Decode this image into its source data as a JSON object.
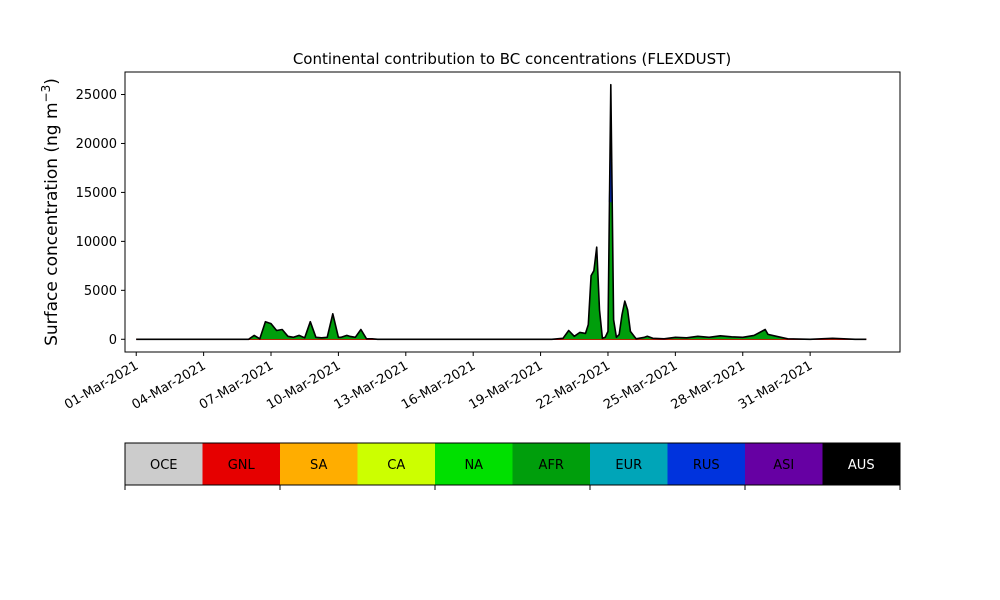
{
  "chart_data": {
    "type": "area",
    "title": "Continental contribution to BC concentrations (FLEXDUST)",
    "xlabel": "",
    "ylabel": "Surface concentration (ng m",
    "ylabel_unit_exponent": "−3",
    "ylabel_close": ")",
    "ylim": [
      -1300,
      27300
    ],
    "xlim": [
      "2021-02-28T12:00",
      "2021-04-04T00:00"
    ],
    "y_ticks": [
      0,
      5000,
      10000,
      15000,
      20000,
      25000
    ],
    "y_tick_labels": [
      "0",
      "5000",
      "10000",
      "15000",
      "20000",
      "25000"
    ],
    "x_ticks": [
      "2021-03-01",
      "2021-03-04",
      "2021-03-07",
      "2021-03-10",
      "2021-03-13",
      "2021-03-16",
      "2021-03-19",
      "2021-03-22",
      "2021-03-25",
      "2021-03-28",
      "2021-03-31"
    ],
    "x_tick_labels": [
      "01-Mar-2021",
      "04-Mar-2021",
      "07-Mar-2021",
      "10-Mar-2021",
      "13-Mar-2021",
      "16-Mar-2021",
      "19-Mar-2021",
      "22-Mar-2021",
      "25-Mar-2021",
      "28-Mar-2021",
      "31-Mar-2021"
    ],
    "grid": false,
    "legend": {
      "placement": "bottom",
      "entries": [
        {
          "label": "OCE",
          "color": "#cccccc",
          "text_color": "#000000"
        },
        {
          "label": "GNL",
          "color": "#e60000",
          "text_color": "#000000"
        },
        {
          "label": "SA",
          "color": "#ffad00",
          "text_color": "#000000"
        },
        {
          "label": "CA",
          "color": "#ccff00",
          "text_color": "#000000"
        },
        {
          "label": "NA",
          "color": "#00e000",
          "text_color": "#000000"
        },
        {
          "label": "AFR",
          "color": "#009e0c",
          "text_color": "#000000"
        },
        {
          "label": "EUR",
          "color": "#00a5b8",
          "text_color": "#000000"
        },
        {
          "label": "RUS",
          "color": "#0033dd",
          "text_color": "#000000"
        },
        {
          "label": "ASI",
          "color": "#6600a3",
          "text_color": "#000000"
        },
        {
          "label": "AUS",
          "color": "#000000",
          "text_color": "#ffffff"
        }
      ]
    },
    "series_fill_color": "#009e0c",
    "total_line_color": "#000000",
    "dominant_series": "AFR",
    "x": [
      "2021-03-01T00:00",
      "2021-03-02T00:00",
      "2021-03-03T00:00",
      "2021-03-04T00:00",
      "2021-03-05T00:00",
      "2021-03-06T00:00",
      "2021-03-06T06:00",
      "2021-03-06T12:00",
      "2021-03-06T18:00",
      "2021-03-07T00:00",
      "2021-03-07T06:00",
      "2021-03-07T12:00",
      "2021-03-07T18:00",
      "2021-03-08T00:00",
      "2021-03-08T06:00",
      "2021-03-08T12:00",
      "2021-03-08T18:00",
      "2021-03-09T00:00",
      "2021-03-09T06:00",
      "2021-03-09T12:00",
      "2021-03-09T18:00",
      "2021-03-10T00:00",
      "2021-03-10T03:00",
      "2021-03-10T09:00",
      "2021-03-10T12:00",
      "2021-03-10T18:00",
      "2021-03-11T00:00",
      "2021-03-11T06:00",
      "2021-03-11T12:00",
      "2021-03-11T18:00",
      "2021-03-12T00:00",
      "2021-03-12T03:00",
      "2021-03-12T09:00",
      "2021-03-12T12:00",
      "2021-03-13T00:00",
      "2021-03-14T00:00",
      "2021-03-15T00:00",
      "2021-03-16T00:00",
      "2021-03-17T00:00",
      "2021-03-18T00:00",
      "2021-03-19T00:00",
      "2021-03-19T12:00",
      "2021-03-20T00:00",
      "2021-03-20T06:00",
      "2021-03-20T12:00",
      "2021-03-20T18:00",
      "2021-03-21T00:00",
      "2021-03-21T03:00",
      "2021-03-21T06:00",
      "2021-03-21T09:00",
      "2021-03-21T12:00",
      "2021-03-21T15:00",
      "2021-03-21T18:00",
      "2021-03-21T21:00",
      "2021-03-22T00:00",
      "2021-03-22T03:00",
      "2021-03-22T06:00",
      "2021-03-22T09:00",
      "2021-03-22T12:00",
      "2021-03-22T15:00",
      "2021-03-22T18:00",
      "2021-03-22T21:00",
      "2021-03-23T00:00",
      "2021-03-23T06:00",
      "2021-03-23T09:00",
      "2021-03-23T12:00",
      "2021-03-23T15:00",
      "2021-03-23T18:00",
      "2021-03-24T00:00",
      "2021-03-24T12:00",
      "2021-03-25T00:00",
      "2021-03-25T12:00",
      "2021-03-26T00:00",
      "2021-03-26T12:00",
      "2021-03-27T00:00",
      "2021-03-27T12:00",
      "2021-03-28T00:00",
      "2021-03-28T12:00",
      "2021-03-29T00:00",
      "2021-03-29T03:00",
      "2021-03-29T12:00",
      "2021-03-30T00:00",
      "2021-03-31T00:00",
      "2021-04-01T00:00",
      "2021-04-02T00:00",
      "2021-04-02T12:00"
    ],
    "total_values": [
      0,
      0,
      0,
      0,
      0,
      0,
      400,
      50,
      1800,
      1600,
      900,
      1000,
      300,
      200,
      400,
      150,
      1800,
      200,
      150,
      200,
      2600,
      200,
      200,
      400,
      300,
      200,
      1000,
      50,
      50,
      0,
      0,
      0,
      0,
      0,
      0,
      0,
      0,
      0,
      0,
      0,
      0,
      0,
      100,
      900,
      300,
      700,
      600,
      1500,
      6500,
      7000,
      9400,
      3000,
      100,
      200,
      800,
      26000,
      2000,
      200,
      500,
      2500,
      3900,
      3000,
      800,
      50,
      100,
      150,
      200,
      300,
      100,
      50,
      200,
      150,
      300,
      200,
      350,
      250,
      200,
      400,
      1000,
      500,
      300,
      50,
      0,
      100,
      0,
      0
    ]
  }
}
